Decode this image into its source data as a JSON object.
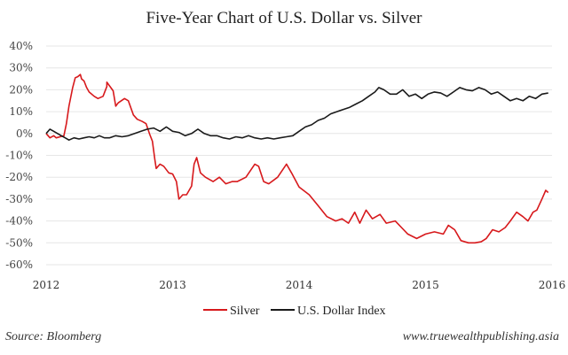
{
  "chart_data": {
    "type": "line",
    "title": "Five-Year Chart of U.S. Dollar vs. Silver",
    "xlabel": "",
    "ylabel": "",
    "xlim": [
      2012,
      2016
    ],
    "ylim": [
      -60,
      40
    ],
    "x_ticks": [
      "2012",
      "2013",
      "2014",
      "2015",
      "2016"
    ],
    "y_ticks": [
      "40%",
      "30%",
      "20%",
      "10%",
      "0%",
      "-10%",
      "-20%",
      "-30%",
      "-40%",
      "-50%",
      "-60%"
    ],
    "y_tick_values": [
      40,
      30,
      20,
      10,
      0,
      -10,
      -20,
      -30,
      -40,
      -50,
      -60
    ],
    "grid": true,
    "legend_position": "bottom-center",
    "series": [
      {
        "name": "Silver",
        "color": "#d7191c",
        "x": [
          2012.0,
          2012.03,
          2012.06,
          2012.08,
          2012.11,
          2012.14,
          2012.16,
          2012.18,
          2012.21,
          2012.23,
          2012.25,
          2012.27,
          2012.28,
          2012.3,
          2012.32,
          2012.34,
          2012.38,
          2012.41,
          2012.45,
          2012.48,
          2012.48,
          2012.53,
          2012.55,
          2012.57,
          2012.62,
          2012.65,
          2012.69,
          2012.72,
          2012.76,
          2012.79,
          2012.82,
          2012.84,
          2012.86,
          2012.87,
          2012.9,
          2012.93,
          2012.97,
          2013.0,
          2013.03,
          2013.05,
          2013.08,
          2013.11,
          2013.15,
          2013.17,
          2013.19,
          2013.22,
          2013.26,
          2013.32,
          2013.37,
          2013.42,
          2013.47,
          2013.51,
          2013.58,
          2013.65,
          2013.68,
          2013.72,
          2013.76,
          2013.83,
          2013.9,
          2013.94,
          2014.0,
          2014.08,
          2014.15,
          2014.22,
          2014.29,
          2014.34,
          2014.39,
          2014.44,
          2014.48,
          2014.53,
          2014.58,
          2014.64,
          2014.69,
          2014.76,
          2014.81,
          2014.86,
          2014.93,
          2015.0,
          2015.07,
          2015.14,
          2015.18,
          2015.23,
          2015.28,
          2015.34,
          2015.39,
          2015.44,
          2015.48,
          2015.53,
          2015.58,
          2015.63,
          2015.67,
          2015.72,
          2015.77,
          2015.81,
          2015.85,
          2015.88,
          2015.92,
          2015.95,
          2015.97
        ],
        "y": [
          0,
          -2,
          -1,
          -2,
          -1.5,
          -1,
          4.5,
          12.5,
          21,
          25.5,
          26,
          27,
          25,
          24,
          21,
          19,
          17,
          16,
          17,
          21.5,
          23.5,
          19.5,
          12.5,
          14,
          16,
          15,
          8.5,
          6.5,
          5.5,
          4.5,
          -0.5,
          -3.5,
          -12,
          -16,
          -14,
          -15,
          -18,
          -18.5,
          -22,
          -30,
          -28,
          -28,
          -24,
          -14,
          -11,
          -18,
          -20,
          -22,
          -20,
          -23,
          -22,
          -22,
          -20,
          -14,
          -15,
          -22,
          -23,
          -20,
          -14,
          -18,
          -24.5,
          -28,
          -33,
          -38,
          -40,
          -39,
          -41,
          -36,
          -41,
          -35,
          -39,
          -37,
          -41,
          -40,
          -43,
          -46,
          -48,
          -46,
          -45,
          -46,
          -42,
          -44,
          -49,
          -50,
          -50,
          -49.5,
          -48,
          -44,
          -45,
          -43,
          -40,
          -36,
          -38,
          -40,
          -36,
          -35,
          -30,
          -26,
          -27
        ]
      },
      {
        "name": "U.S. Dollar Index",
        "color": "#1a1a1a",
        "x": [
          2012.0,
          2012.03,
          2012.06,
          2012.09,
          2012.12,
          2012.15,
          2012.18,
          2012.22,
          2012.26,
          2012.3,
          2012.34,
          2012.38,
          2012.42,
          2012.46,
          2012.5,
          2012.55,
          2012.6,
          2012.65,
          2012.7,
          2012.75,
          2012.8,
          2012.85,
          2012.9,
          2012.95,
          2013.0,
          2013.05,
          2013.1,
          2013.15,
          2013.2,
          2013.25,
          2013.3,
          2013.35,
          2013.4,
          2013.45,
          2013.5,
          2013.55,
          2013.6,
          2013.65,
          2013.7,
          2013.75,
          2013.8,
          2013.85,
          2013.9,
          2013.95,
          2014.0,
          2014.05,
          2014.1,
          2014.15,
          2014.2,
          2014.25,
          2014.3,
          2014.35,
          2014.4,
          2014.45,
          2014.5,
          2014.55,
          2014.6,
          2014.63,
          2014.67,
          2014.72,
          2014.77,
          2014.82,
          2014.87,
          2014.92,
          2014.97,
          2015.02,
          2015.07,
          2015.12,
          2015.17,
          2015.22,
          2015.27,
          2015.32,
          2015.37,
          2015.42,
          2015.47,
          2015.52,
          2015.57,
          2015.62,
          2015.67,
          2015.72,
          2015.77,
          2015.82,
          2015.87,
          2015.92,
          2015.97
        ],
        "y": [
          0,
          2,
          1,
          0,
          -1,
          -2,
          -3,
          -2,
          -2.5,
          -2,
          -1.5,
          -2,
          -1,
          -2,
          -2,
          -1,
          -1.5,
          -1,
          0,
          1,
          2,
          2.5,
          1,
          3,
          1,
          0.5,
          -1,
          0,
          2,
          0,
          -1,
          -1,
          -2,
          -2.5,
          -1.5,
          -2,
          -1,
          -2,
          -2.5,
          -2,
          -2.5,
          -2,
          -1.5,
          -1,
          1,
          3,
          4,
          6,
          7,
          9,
          10,
          11,
          12,
          13.5,
          15,
          17,
          19,
          21,
          20,
          18,
          18,
          20,
          17,
          18,
          16,
          18,
          19,
          18.5,
          17,
          19,
          21,
          20,
          19.5,
          21,
          20,
          18,
          19,
          17,
          15,
          16,
          15,
          17,
          16,
          18,
          18.5
        ]
      }
    ]
  },
  "footer": {
    "source": "Source: Bloomberg",
    "website": "www.truewealthpublishing.asia"
  }
}
